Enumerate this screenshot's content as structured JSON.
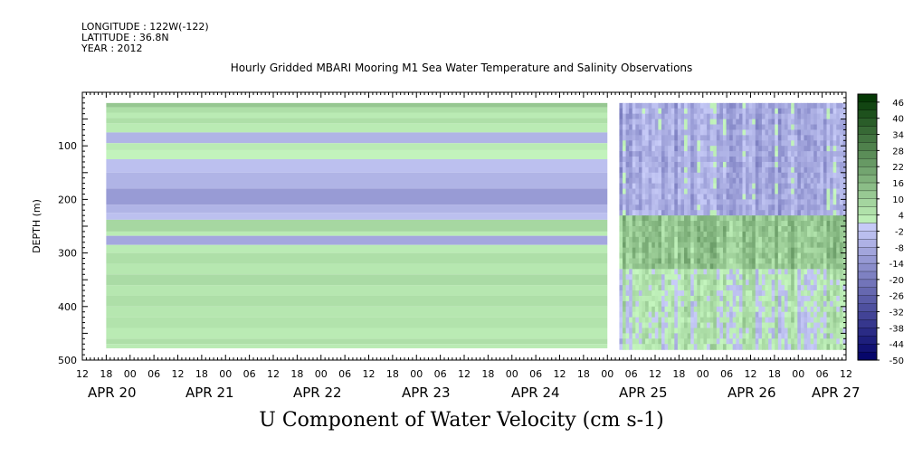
{
  "header": {
    "longitude": "LONGITUDE : 122W(-122)",
    "latitude": "LATITUDE : 36.8N",
    "year": "YEAR : 2012"
  },
  "chart_title": "Hourly Gridded MBARI Mooring M1 Sea Water Temperature and Salinity Observations",
  "bottom_title": "U Component of Water Velocity (cm s-1)",
  "chart_data": {
    "type": "heatmap",
    "title": "Hourly Gridded MBARI Mooring M1 Sea Water Temperature and Salinity Observations",
    "subtitle": "U Component of Water Velocity (cm s-1)",
    "ylabel": "DEPTH (m)",
    "xlabel": "",
    "x_start": "2012-04-19 12:00",
    "x_end": "2012-04-27 12:00",
    "ylim": [
      500,
      0
    ],
    "y_ticks": [
      100,
      200,
      300,
      400,
      500
    ],
    "x_hour_ticks": [
      "12",
      "18",
      "00",
      "06",
      "12",
      "18",
      "00",
      "06",
      "12",
      "18",
      "00",
      "06",
      "12",
      "18",
      "00",
      "06",
      "12",
      "18",
      "00",
      "06",
      "12",
      "18",
      "00",
      "06",
      "12",
      "18",
      "00",
      "06",
      "12",
      "18",
      "00",
      "06",
      "12"
    ],
    "x_date_labels": [
      "APR 20",
      "APR 21",
      "APR 22",
      "APR 23",
      "APR 24",
      "APR 25",
      "APR 26",
      "APR 27"
    ],
    "colorbar": {
      "levels": [
        -50,
        -47,
        -44,
        -41,
        -38,
        -35,
        -32,
        -29,
        -26,
        -23,
        -20,
        -17,
        -14,
        -11,
        -8,
        -5,
        -2,
        1,
        4,
        7,
        10,
        13,
        16,
        19,
        22,
        25,
        28,
        31,
        34,
        37,
        40,
        43,
        46,
        49
      ],
      "tick_labels": [
        "46",
        "40",
        "34",
        "28",
        "22",
        "16",
        "10",
        "4",
        "-2",
        "-8",
        "-14",
        "-20",
        "-26",
        "-32",
        "-38",
        "-44",
        "-50"
      ],
      "negative_color_dark": "#000066",
      "negative_color_light": "#c8ccf8",
      "positive_color_light": "#c6f7c0",
      "positive_color_dark": "#003300"
    },
    "constant_period": {
      "start": "2012-04-19 18:00",
      "end": "2012-04-25 00:00"
    },
    "depth_profile_constant": [
      {
        "depth_top": 20,
        "depth_bottom": 28,
        "value": 12
      },
      {
        "depth_top": 28,
        "depth_bottom": 38,
        "value": 6
      },
      {
        "depth_top": 38,
        "depth_bottom": 48,
        "value": 3
      },
      {
        "depth_top": 48,
        "depth_bottom": 58,
        "value": 6
      },
      {
        "depth_top": 58,
        "depth_bottom": 75,
        "value": 3
      },
      {
        "depth_top": 75,
        "depth_bottom": 95,
        "value": -6
      },
      {
        "depth_top": 95,
        "depth_bottom": 108,
        "value": 3
      },
      {
        "depth_top": 108,
        "depth_bottom": 125,
        "value": 1
      },
      {
        "depth_top": 125,
        "depth_bottom": 150,
        "value": -3
      },
      {
        "depth_top": 150,
        "depth_bottom": 180,
        "value": -6
      },
      {
        "depth_top": 180,
        "depth_bottom": 210,
        "value": -12
      },
      {
        "depth_top": 210,
        "depth_bottom": 225,
        "value": -6
      },
      {
        "depth_top": 225,
        "depth_bottom": 238,
        "value": -3
      },
      {
        "depth_top": 238,
        "depth_bottom": 260,
        "value": 8
      },
      {
        "depth_top": 260,
        "depth_bottom": 268,
        "value": 3
      },
      {
        "depth_top": 268,
        "depth_bottom": 285,
        "value": -9
      },
      {
        "depth_top": 285,
        "depth_bottom": 300,
        "value": 3
      },
      {
        "depth_top": 300,
        "depth_bottom": 320,
        "value": 6
      },
      {
        "depth_top": 320,
        "depth_bottom": 340,
        "value": 4
      },
      {
        "depth_top": 340,
        "depth_bottom": 360,
        "value": 7
      },
      {
        "depth_top": 360,
        "depth_bottom": 380,
        "value": 4
      },
      {
        "depth_top": 380,
        "depth_bottom": 400,
        "value": 6
      },
      {
        "depth_top": 400,
        "depth_bottom": 420,
        "value": 4
      },
      {
        "depth_top": 420,
        "depth_bottom": 440,
        "value": 5
      },
      {
        "depth_top": 440,
        "depth_bottom": 460,
        "value": 3
      },
      {
        "depth_top": 460,
        "depth_bottom": 470,
        "value": 6
      },
      {
        "depth_top": 470,
        "depth_bottom": 478,
        "value": 3
      }
    ],
    "variable_period": {
      "start": "2012-04-25 03:00",
      "end": "2012-04-27 12:00",
      "depth_range": [
        20,
        480
      ]
    },
    "variable_period_regions": [
      {
        "depth_top": 20,
        "depth_bottom": 230,
        "value": -8,
        "note": "predominantly negative (westward)"
      },
      {
        "depth_top": 230,
        "depth_bottom": 330,
        "value": 12,
        "note": "predominantly positive (eastward)"
      },
      {
        "depth_top": 330,
        "depth_bottom": 480,
        "value": 2,
        "note": "mixed"
      }
    ]
  }
}
